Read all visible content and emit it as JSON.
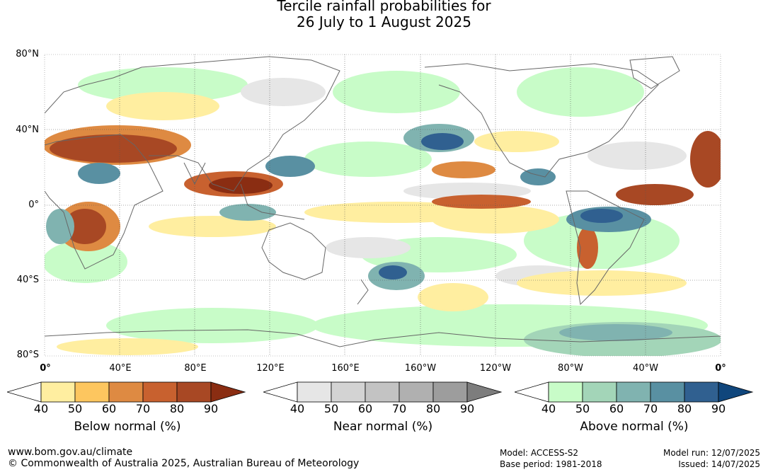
{
  "title": {
    "line1": "Tercile rainfall probabilities for",
    "line2": "26 July to 1 August 2025"
  },
  "map": {
    "lat_labels": [
      "80°N",
      "40°N",
      "0°",
      "40°S",
      "80°S"
    ],
    "lon_labels": [
      "0°",
      "40°E",
      "80°E",
      "120°E",
      "160°E",
      "160°W",
      "120°W",
      "80°W",
      "40°W",
      "0°"
    ]
  },
  "colorbars": [
    {
      "title": "Below normal (%)",
      "ticks": [
        "40",
        "50",
        "60",
        "70",
        "80",
        "90"
      ],
      "colors": [
        "#ffffff",
        "#ffeea0",
        "#fdc65f",
        "#de8a42",
        "#c8612f",
        "#a84824",
        "#8a2d12"
      ]
    },
    {
      "title": "Near normal (%)",
      "ticks": [
        "40",
        "50",
        "60",
        "70",
        "80",
        "90"
      ],
      "colors": [
        "#ffffff",
        "#e6e6e6",
        "#d3d3d3",
        "#c3c3c3",
        "#b0b0b0",
        "#9d9d9d",
        "#7d7d7d"
      ]
    },
    {
      "title": "Above normal (%)",
      "ticks": [
        "40",
        "50",
        "60",
        "70",
        "80",
        "90"
      ],
      "colors": [
        "#ffffff",
        "#c8fcc8",
        "#a3d5b8",
        "#80b3b0",
        "#5990a2",
        "#306090",
        "#10467c"
      ]
    }
  ],
  "footer": {
    "website": "www.bom.gov.au/climate",
    "copyright": "© Commonwealth of Australia 2025, Australian Bureau of Meteorology",
    "model": "Model: ACCESS-S2",
    "base_period": "Base period: 1981-2018",
    "model_run": "Model run: 12/07/2025",
    "issued": "Issued: 14/07/2025"
  }
}
